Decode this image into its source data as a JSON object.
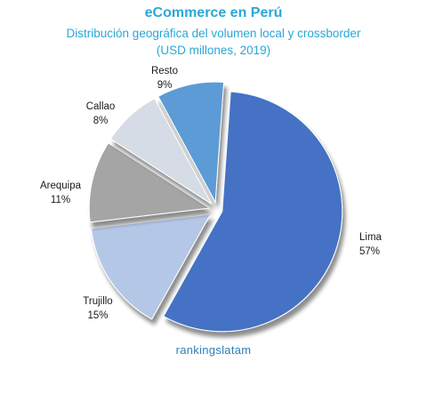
{
  "header": {
    "title": "eCommerce en Perú",
    "subtitle_line1": "Distribución geográfica del volumen  local y crossborder",
    "subtitle_line2": "(USD millones, 2019)"
  },
  "watermark": "rankingslatam",
  "colors": {
    "title": "#2aa7d6",
    "Lima": "#4472c4",
    "Trujillo": "#b4c7e7",
    "Arequipa": "#a5a5a5",
    "Callao": "#d6dce5",
    "Resto": "#5b9bd5"
  },
  "chart_data": {
    "type": "pie",
    "title": "eCommerce en Perú",
    "subtitle": "Distribución geográfica del volumen  local y crossborder (USD millones, 2019)",
    "exploded": true,
    "slices": [
      {
        "label": "Lima",
        "value": 57,
        "value_label": "57%"
      },
      {
        "label": "Trujillo",
        "value": 15,
        "value_label": "15%"
      },
      {
        "label": "Arequipa",
        "value": 11,
        "value_label": "11%"
      },
      {
        "label": "Callao",
        "value": 8,
        "value_label": "8%"
      },
      {
        "label": "Resto",
        "value": 9,
        "value_label": "9%"
      }
    ]
  }
}
